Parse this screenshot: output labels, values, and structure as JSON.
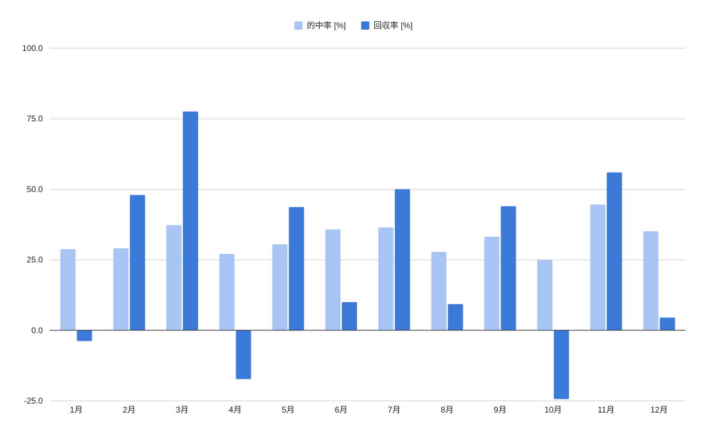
{
  "chart_data": {
    "type": "bar",
    "categories": [
      "1月",
      "2月",
      "3月",
      "4月",
      "5月",
      "6月",
      "7月",
      "8月",
      "9月",
      "10月",
      "11月",
      "12月"
    ],
    "series": [
      {
        "name": "的中率 [%]",
        "color": "#a8c5f5",
        "values": [
          28.8,
          29.1,
          37.3,
          27.1,
          30.5,
          35.8,
          36.5,
          27.8,
          33.2,
          25.0,
          44.6,
          35.1
        ]
      },
      {
        "name": "回収率 [%]",
        "color": "#3c7ad9",
        "values": [
          -3.8,
          48.0,
          77.6,
          -17.3,
          43.7,
          10.0,
          50.0,
          9.3,
          44.0,
          -24.4,
          56.0,
          4.5
        ]
      }
    ],
    "ylim": [
      -25,
      100
    ],
    "yticks": [
      -25,
      0,
      25,
      50,
      75,
      100
    ],
    "ytick_labels": [
      "-25.0",
      "0.0",
      "25.0",
      "50.0",
      "75.0",
      "100.0"
    ],
    "grid": true,
    "legend_position": "top-center",
    "title": "",
    "xlabel": "",
    "ylabel": ""
  }
}
